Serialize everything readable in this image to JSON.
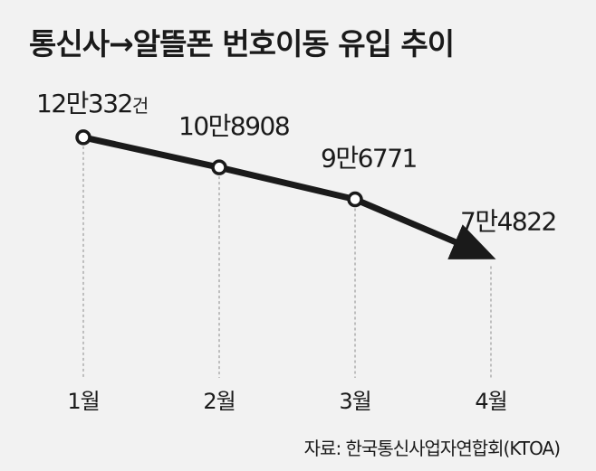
{
  "chart_data": {
    "type": "line",
    "title": "통신사→알뜰폰 번호이동 유입 추이",
    "categories": [
      "1월",
      "2월",
      "3월",
      "4월"
    ],
    "series": [
      {
        "values": [
          120332,
          108908,
          96771,
          74822
        ],
        "value_labels": [
          "12만332",
          "10만8908",
          "9만6771",
          "7만4822"
        ]
      }
    ],
    "first_label_unit": "건",
    "ylim": [
      60000,
      130000
    ],
    "grid": false,
    "legend": "none",
    "last_point_marker": "arrow",
    "source": "자료: 한국통신사업자연합회(KTOA)"
  },
  "colors": {
    "line": "#1a1a1a",
    "background": "#f2f2f2",
    "guide": "#8a8a8a"
  }
}
